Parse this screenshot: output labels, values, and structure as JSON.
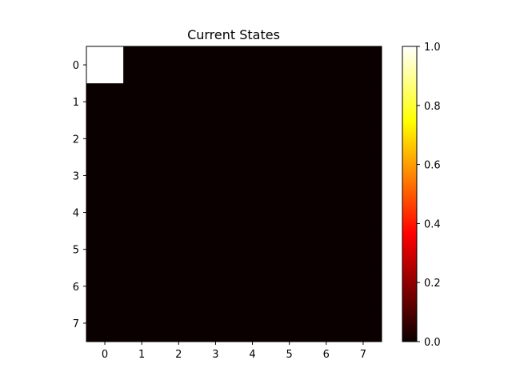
{
  "chart_data": {
    "type": "heatmap",
    "title": "Current States",
    "xlabel": "",
    "ylabel": "",
    "colormap": "hot",
    "x_ticks": [
      "0",
      "1",
      "2",
      "3",
      "4",
      "5",
      "6",
      "7"
    ],
    "y_ticks": [
      "0",
      "1",
      "2",
      "3",
      "4",
      "5",
      "6",
      "7"
    ],
    "values": [
      [
        1,
        0,
        0,
        0,
        0,
        0,
        0,
        0
      ],
      [
        0,
        0,
        0,
        0,
        0,
        0,
        0,
        0
      ],
      [
        0,
        0,
        0,
        0,
        0,
        0,
        0,
        0
      ],
      [
        0,
        0,
        0,
        0,
        0,
        0,
        0,
        0
      ],
      [
        0,
        0,
        0,
        0,
        0,
        0,
        0,
        0
      ],
      [
        0,
        0,
        0,
        0,
        0,
        0,
        0,
        0
      ],
      [
        0,
        0,
        0,
        0,
        0,
        0,
        0,
        0
      ],
      [
        0,
        0,
        0,
        0,
        0,
        0,
        0,
        0
      ]
    ],
    "colorbar": {
      "range": [
        0.0,
        1.0
      ],
      "ticks": [
        "0.0",
        "0.2",
        "0.4",
        "0.6",
        "0.8",
        "1.0"
      ]
    },
    "grid": false
  }
}
